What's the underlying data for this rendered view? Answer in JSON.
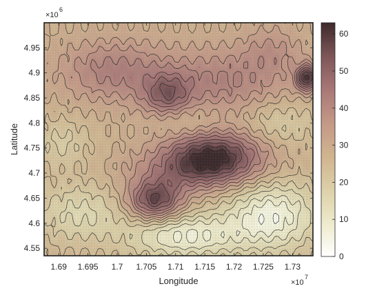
{
  "chart_data": {
    "type": "heatmap",
    "variant": "filled-contour-map",
    "title": "",
    "xlabel": "Longitude",
    "ylabel": "Latitude",
    "x_exponent_label": "×10",
    "x_exponent_power": "7",
    "y_exponent_label": "×10",
    "y_exponent_power": "6",
    "xlim": [
      1.6875,
      1.7335
    ],
    "ylim": [
      4.535,
      5.0
    ],
    "x_ticks": [
      1.69,
      1.695,
      1.7,
      1.705,
      1.71,
      1.715,
      1.72,
      1.725,
      1.73
    ],
    "x_tick_labels": [
      "1.69",
      "1.695",
      "1.7",
      "1.705",
      "1.71",
      "1.715",
      "1.72",
      "1.725",
      "1.73"
    ],
    "y_ticks": [
      4.55,
      4.6,
      4.65,
      4.7,
      4.75,
      4.8,
      4.85,
      4.9,
      4.95
    ],
    "y_tick_labels": [
      "4.55",
      "4.6",
      "4.65",
      "4.7",
      "4.75",
      "4.8",
      "4.85",
      "4.9",
      "4.95"
    ],
    "colorbar": {
      "range": [
        0,
        63
      ],
      "ticks": [
        0,
        10,
        20,
        30,
        40,
        50,
        60
      ],
      "tick_labels": [
        "0",
        "10",
        "20",
        "30",
        "40",
        "50",
        "60"
      ],
      "colors": [
        "#ffffff",
        "#eeeacc",
        "#dcd0a8",
        "#d0b48f",
        "#c49886",
        "#a97876",
        "#7e5658",
        "#3e2a2b"
      ]
    },
    "field_base": 28,
    "features": [
      {
        "x": 1.7165,
        "y": 4.735,
        "peak": 33,
        "sx": 0.0085,
        "sy": 0.05
      },
      {
        "x": 1.7065,
        "y": 4.645,
        "peak": 30,
        "sx": 0.0045,
        "sy": 0.038
      },
      {
        "x": 1.7118,
        "y": 4.7,
        "peak": 12,
        "sx": 0.01,
        "sy": 0.04
      },
      {
        "x": 1.7085,
        "y": 4.855,
        "peak": 18,
        "sx": 0.004,
        "sy": 0.04
      },
      {
        "x": 1.7325,
        "y": 4.89,
        "peak": 33,
        "sx": 0.0018,
        "sy": 0.025
      },
      {
        "x": 1.699,
        "y": 4.905,
        "peak": 14,
        "sx": 0.009,
        "sy": 0.06
      },
      {
        "x": 1.7175,
        "y": 4.88,
        "peak": 14,
        "sx": 0.012,
        "sy": 0.07
      },
      {
        "x": 1.7265,
        "y": 4.945,
        "peak": 8,
        "sx": 0.005,
        "sy": 0.05
      },
      {
        "x": 1.7265,
        "y": 4.615,
        "peak": -22,
        "sx": 0.008,
        "sy": 0.07
      },
      {
        "x": 1.7115,
        "y": 4.575,
        "peak": -20,
        "sx": 0.0095,
        "sy": 0.045
      },
      {
        "x": 1.6935,
        "y": 4.62,
        "peak": -12,
        "sx": 0.008,
        "sy": 0.06
      },
      {
        "x": 1.6905,
        "y": 4.76,
        "peak": -8,
        "sx": 0.005,
        "sy": 0.05
      },
      {
        "x": 1.7125,
        "y": 4.8,
        "peak": -7,
        "sx": 0.006,
        "sy": 0.04
      },
      {
        "x": 1.7275,
        "y": 4.8,
        "peak": -9,
        "sx": 0.007,
        "sy": 0.05
      }
    ]
  }
}
